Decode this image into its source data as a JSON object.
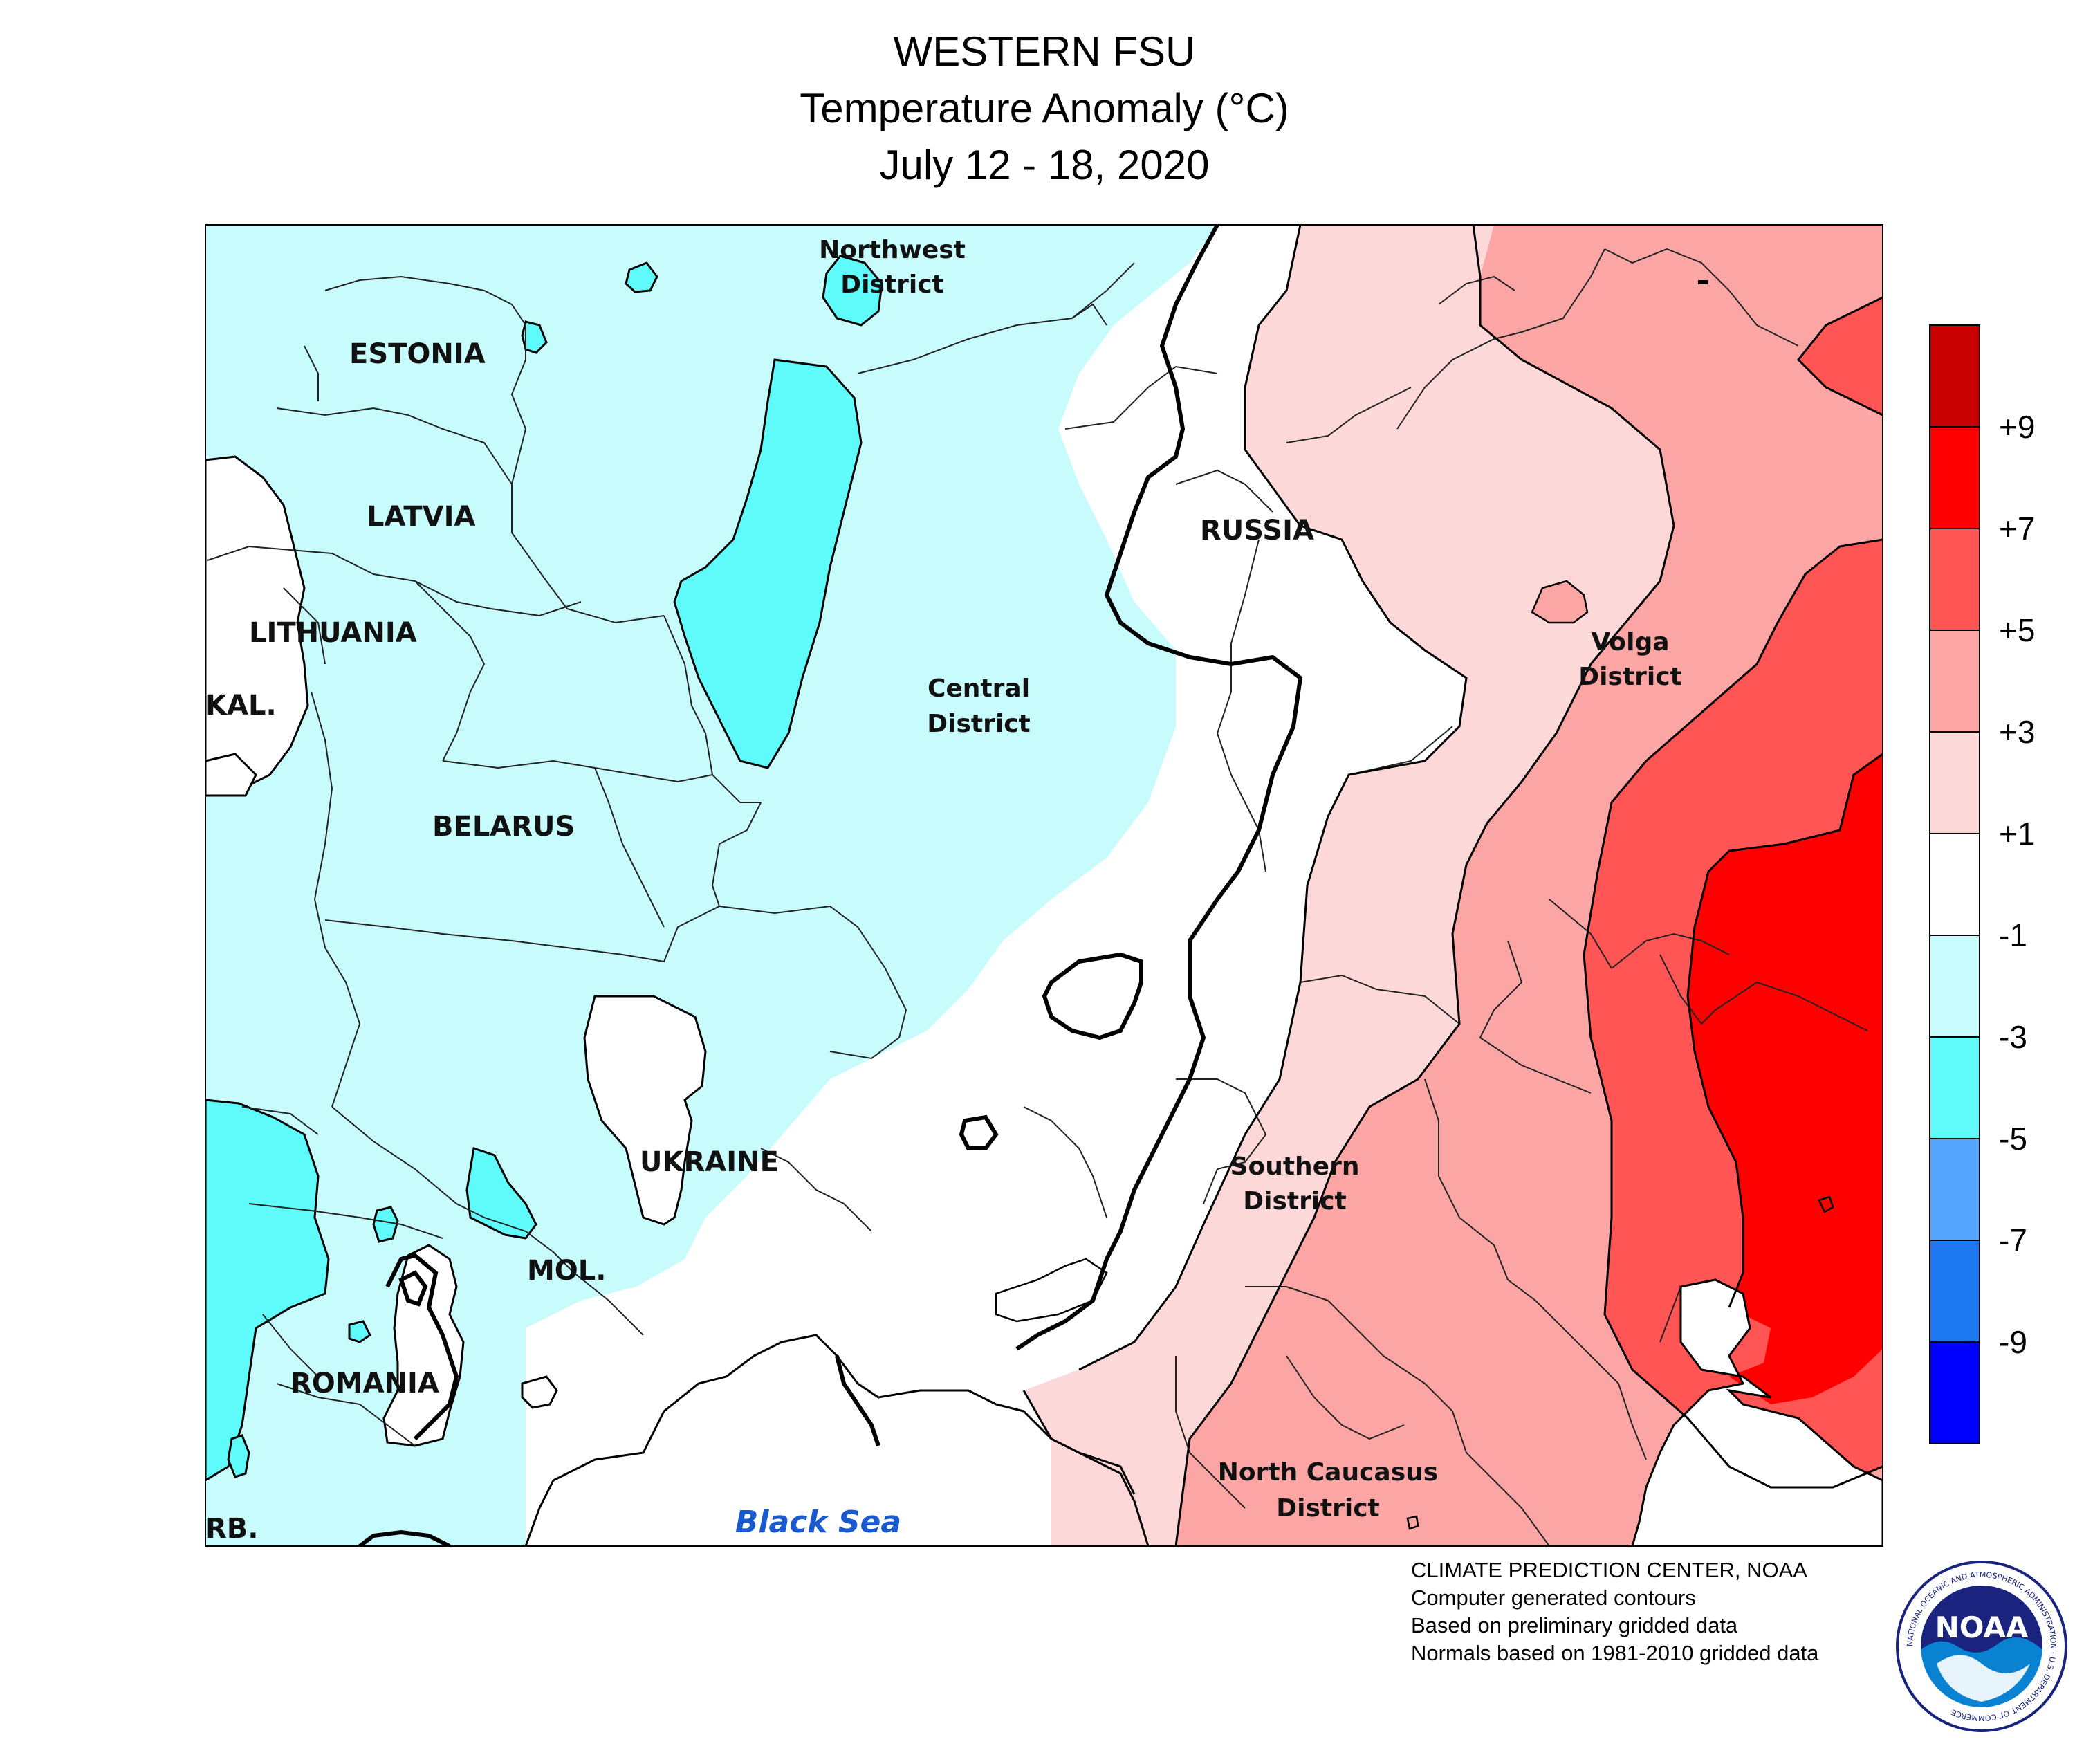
{
  "header": {
    "title": "WESTERN FSU",
    "subtitle": "Temperature Anomaly (°C)",
    "date_range": "July 12 - 18, 2020"
  },
  "map_labels": {
    "estonia": "ESTONIA",
    "latvia": "LATVIA",
    "lithuania": "LITHUANIA",
    "kaliningrad": "KAL.",
    "belarus": "BELARUS",
    "ukraine": "UKRAINE",
    "moldova": "MOL.",
    "romania": "ROMANIA",
    "serbia": "RB.",
    "russia": "RUSSIA",
    "northwest_district": [
      "Northwest",
      "District"
    ],
    "central_district": [
      "Central",
      "District"
    ],
    "volga_district": [
      "Volga",
      "District"
    ],
    "southern_district": [
      "Southern",
      "District"
    ],
    "north_caucasus_district": [
      "North Caucasus",
      "District"
    ],
    "black_sea": "Black Sea"
  },
  "legend": {
    "ticks": [
      "+9",
      "+7",
      "+5",
      "+3",
      "+1",
      "-1",
      "-3",
      "-5",
      "-7",
      "-9"
    ],
    "colors": [
      "#c80000",
      "#ff0000",
      "#ff5555",
      "#fba5a5",
      "#fdd8d8",
      "#ffffff",
      "#c8fcfc",
      "#5ffafa",
      "#55a5ff",
      "#1e78f0",
      "#0000ff"
    ]
  },
  "credits": [
    "CLIMATE PREDICTION CENTER, NOAA",
    "Computer generated contours",
    "Based on preliminary gridded data",
    "Normals based on 1981-2010 gridded data"
  ],
  "logo": {
    "text": "NOAA",
    "ring_text": "NATIONAL OCEANIC AND ATMOSPHERIC ADMINISTRATION · U.S. DEPARTMENT OF COMMERCE"
  }
}
